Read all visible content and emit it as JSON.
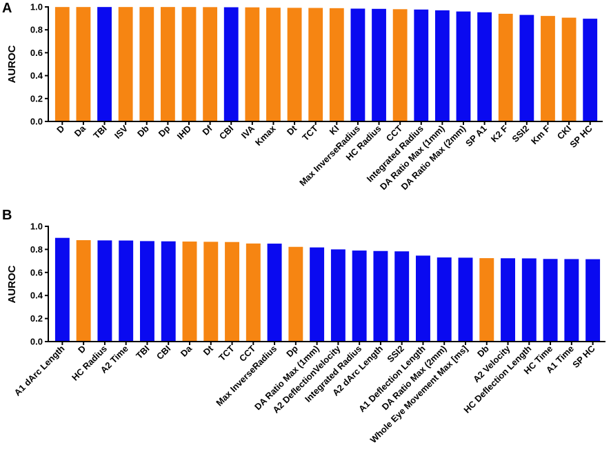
{
  "colors": {
    "orange": "#f68512",
    "blue": "#0a0af0"
  },
  "chart_data": [
    {
      "panel": "A",
      "type": "bar",
      "ylabel": "AUROC",
      "ylim": [
        0,
        1.0
      ],
      "yticks": [
        "0.0",
        "0.2",
        "0.4",
        "0.6",
        "0.8",
        "1.0"
      ],
      "categories": [
        "D",
        "Da",
        "TBI",
        "ISV",
        "Db",
        "Dp",
        "IHD",
        "Df",
        "CBI",
        "IVA",
        "Kmax",
        "Dt",
        "TCT",
        "KI",
        "Max InverseRadius",
        "HC Radius",
        "CCT",
        "Integrated Radius",
        "DA Ratio Max (1mm)",
        "DA Ratio Max (2mm)",
        "SP A1",
        "K2 F",
        "SSI2",
        "Km F",
        "CKI",
        "SP HC"
      ],
      "values": [
        0.999,
        0.999,
        0.999,
        0.999,
        0.999,
        0.999,
        0.999,
        0.998,
        0.997,
        0.996,
        0.993,
        0.992,
        0.991,
        0.989,
        0.985,
        0.983,
        0.98,
        0.977,
        0.97,
        0.96,
        0.953,
        0.94,
        0.93,
        0.921,
        0.906,
        0.897
      ],
      "bar_colors": [
        "orange",
        "orange",
        "blue",
        "orange",
        "orange",
        "orange",
        "orange",
        "orange",
        "blue",
        "orange",
        "orange",
        "orange",
        "orange",
        "orange",
        "blue",
        "blue",
        "orange",
        "blue",
        "blue",
        "blue",
        "blue",
        "orange",
        "blue",
        "orange",
        "orange",
        "blue"
      ]
    },
    {
      "panel": "B",
      "type": "bar",
      "ylabel": "AUROC",
      "ylim": [
        0,
        1.0
      ],
      "yticks": [
        "0.0",
        "0.2",
        "0.4",
        "0.6",
        "0.8",
        "1.0"
      ],
      "categories": [
        "A1 dArc Length",
        "D",
        "HC Radius",
        "A2 Time",
        "TBI",
        "CBI",
        "Da",
        "Dt",
        "TCT",
        "CCT",
        "Max InverseRadius",
        "Dp",
        "DA Ratio Max (1mm)",
        "A2 DeflectionVelocity",
        "Integrated Radius",
        "A2 dArc Length",
        "SSI2",
        "A1 Deflection Length",
        "DA Ratio Max (2mm)",
        "Whole Eye Movement Max [ms]",
        "Db",
        "A2 Velocity",
        "HC Deflection Length",
        "HC Time",
        "A1 Time",
        "SP HC"
      ],
      "values": [
        0.9,
        0.88,
        0.878,
        0.877,
        0.872,
        0.87,
        0.868,
        0.866,
        0.864,
        0.851,
        0.85,
        0.822,
        0.817,
        0.8,
        0.79,
        0.786,
        0.783,
        0.746,
        0.73,
        0.728,
        0.724,
        0.723,
        0.722,
        0.717,
        0.716,
        0.715
      ],
      "bar_colors": [
        "blue",
        "orange",
        "blue",
        "blue",
        "blue",
        "blue",
        "orange",
        "orange",
        "orange",
        "orange",
        "blue",
        "orange",
        "blue",
        "blue",
        "blue",
        "blue",
        "blue",
        "blue",
        "blue",
        "blue",
        "orange",
        "blue",
        "blue",
        "blue",
        "blue",
        "blue"
      ]
    }
  ]
}
